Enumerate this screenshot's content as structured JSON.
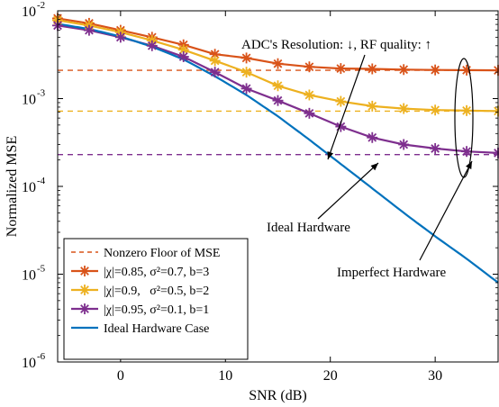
{
  "chart_data": {
    "type": "line",
    "xlabel": "SNR (dB)",
    "ylabel": "Normalized MSE",
    "xlim": [
      -6,
      36
    ],
    "ylim_log10": [
      -6,
      -2
    ],
    "yscale": "log",
    "grid": false,
    "legend_position": "bottom-left",
    "x_ticks": [
      0,
      10,
      20,
      30
    ],
    "x_tick_labels": [
      "0",
      "10",
      "20",
      "30"
    ],
    "y_ticks_log10": [
      -6,
      -5,
      -4,
      -3,
      -2
    ],
    "y_tick_labels": [
      {
        "base": "10",
        "exp": "-6"
      },
      {
        "base": "10",
        "exp": "-5"
      },
      {
        "base": "10",
        "exp": "-4"
      },
      {
        "base": "10",
        "exp": "-3"
      },
      {
        "base": "10",
        "exp": "-2"
      }
    ],
    "x": [
      -6,
      -3,
      0,
      3,
      6,
      9,
      12,
      15,
      18,
      21,
      24,
      27,
      30,
      33,
      36
    ],
    "floors": [
      {
        "value": 0.0021,
        "color": "#D95319"
      },
      {
        "value": 0.00072,
        "color": "#EDB120"
      },
      {
        "value": 0.00023,
        "color": "#7E2F8E"
      }
    ],
    "series": [
      {
        "name": "|χ|=0.85, σ²=0.7, b=3",
        "color": "#D95319",
        "values": [
          0.0082,
          0.0072,
          0.006,
          0.005,
          0.0041,
          0.0032,
          0.0029,
          0.0025,
          0.0023,
          0.0022,
          0.00218,
          0.00214,
          0.00212,
          0.00211,
          0.0021
        ]
      },
      {
        "name": "|χ|=0.9,   σ²=0.5, b=2",
        "color": "#EDB120",
        "values": [
          0.0078,
          0.0068,
          0.0057,
          0.0046,
          0.0036,
          0.0027,
          0.002,
          0.0014,
          0.0011,
          0.00093,
          0.00082,
          0.00077,
          0.00074,
          0.00073,
          0.00072
        ]
      },
      {
        "name": "|χ|=0.95, σ²=0.1, b=1",
        "color": "#7E2F8E",
        "values": [
          0.0068,
          0.006,
          0.005,
          0.004,
          0.003,
          0.002,
          0.0013,
          0.00095,
          0.00068,
          0.00048,
          0.00036,
          0.0003,
          0.00027,
          0.00025,
          0.00024
        ]
      },
      {
        "name": "Ideal Hardware Case",
        "color": "#0072BD",
        "x": [
          -6,
          -3,
          0,
          3,
          6,
          9,
          12,
          15,
          18,
          21,
          24,
          27,
          30,
          33,
          36
        ],
        "values": [
          0.0071,
          0.0062,
          0.0051,
          0.0039,
          0.0028,
          0.0018,
          0.0011,
          0.00063,
          0.00034,
          0.00018,
          9.5e-05,
          5e-05,
          2.7e-05,
          1.5e-05,
          8e-06
        ]
      }
    ],
    "floor_legend_label": "Nonzero Floor of MSE",
    "annotations": {
      "resolution_text": "ADC's Resolution: ↓, RF quality: ↑",
      "ideal_text": "Ideal Hardware",
      "imperfect_text": "Imperfect Hardware"
    }
  }
}
